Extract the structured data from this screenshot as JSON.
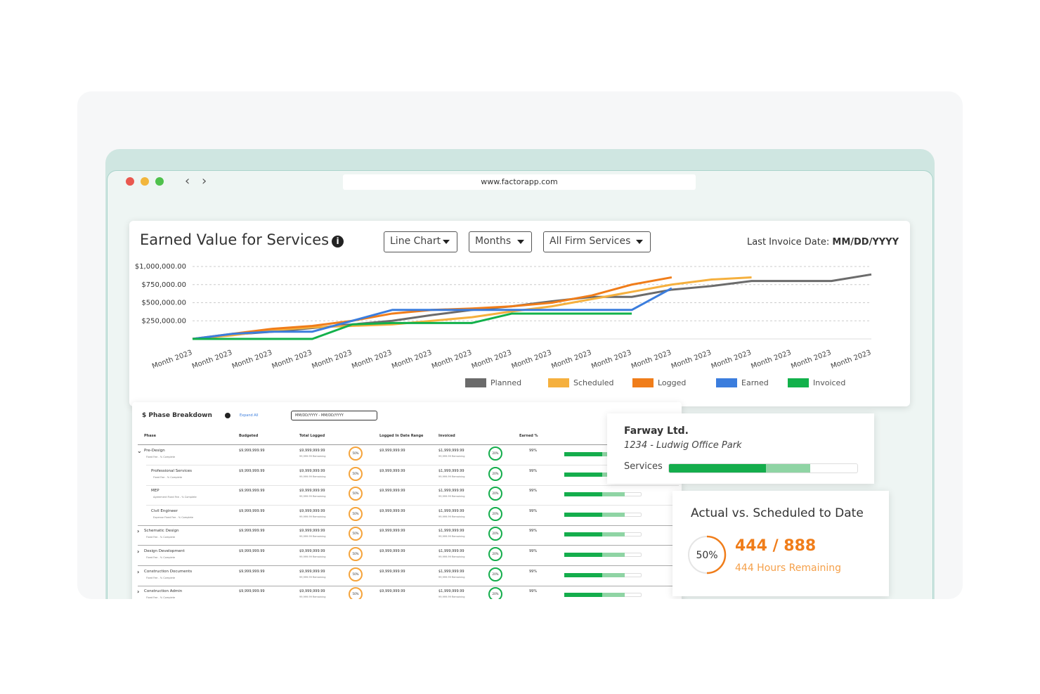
{
  "browser": {
    "url": "www.factorapp.com"
  },
  "earned_value": {
    "title": "Earned Value for Services",
    "dropdowns": [
      "Line Chart",
      "Months",
      "All Firm Services"
    ],
    "last_invoice_label": "Last Invoice Date:",
    "last_invoice_value": "MM/DD/YYYY"
  },
  "chart_data": {
    "type": "line",
    "categories": [
      "Month 2023",
      "Month 2023",
      "Month 2023",
      "Month 2023",
      "Month 2023",
      "Month 2023",
      "Month 2023",
      "Month 2023",
      "Month 2023",
      "Month 2023",
      "Month 2023",
      "Month 2023",
      "Month 2023",
      "Month 2023",
      "Month 2023",
      "Month 2023",
      "Month 2023",
      "Month 2023"
    ],
    "ylim": [
      0,
      1000000
    ],
    "yticks": [
      {
        "value": 250000,
        "label": "$250,000.00"
      },
      {
        "value": 500000,
        "label": "$500,000.00"
      },
      {
        "value": 750000,
        "label": "$750,000.00"
      },
      {
        "value": 1000000,
        "label": "$1,000,000.00"
      }
    ],
    "grid": true,
    "series": [
      {
        "name": "Planned",
        "color": "#6b6b6b",
        "values": [
          0,
          60000,
          100000,
          150000,
          200000,
          250000,
          330000,
          400000,
          450000,
          520000,
          580000,
          580000,
          680000,
          730000,
          800000,
          800000,
          800000,
          890000
        ]
      },
      {
        "name": "Scheduled",
        "color": "#f5b03e",
        "values": [
          0,
          50000,
          120000,
          160000,
          180000,
          200000,
          250000,
          300000,
          380000,
          450000,
          550000,
          650000,
          750000,
          820000,
          850000,
          null,
          null,
          null
        ]
      },
      {
        "name": "Logged",
        "color": "#f07d1a",
        "values": [
          0,
          70000,
          140000,
          180000,
          250000,
          350000,
          400000,
          420000,
          450000,
          500000,
          600000,
          750000,
          850000,
          null,
          null,
          null,
          null,
          null
        ]
      },
      {
        "name": "Earned",
        "color": "#3b7ddd",
        "values": [
          0,
          70000,
          100000,
          100000,
          250000,
          400000,
          400000,
          400000,
          400000,
          400000,
          400000,
          400000,
          700000,
          null,
          null,
          null,
          null,
          null
        ]
      },
      {
        "name": "Invoiced",
        "color": "#12b14b",
        "values": [
          0,
          0,
          0,
          0,
          200000,
          220000,
          220000,
          220000,
          350000,
          350000,
          350000,
          350000,
          null,
          null,
          null,
          null,
          null,
          null
        ]
      }
    ]
  },
  "phase_breakdown": {
    "title": "$ Phase Breakdown",
    "expand": "Expand All",
    "date_range": "MM/DD/YYYY - MM/DD/YYYY",
    "columns": [
      "Phase",
      "Budgeted",
      "Total Logged",
      "Logged In Date Range",
      "Invoiced",
      "Earned %"
    ],
    "rows": [
      {
        "phase": "Pre-Design",
        "note": "Fixed Fee - % Complete",
        "budgeted": "$9,999,999.99",
        "logged": "$9,999,999.99",
        "logged_remaining": "99,999.99 Remaining",
        "logged_pct": "50%",
        "range": "$9,999,999.99",
        "invoiced": "$1,999,999.99",
        "invoiced_remaining": "99,999.99 Remaining",
        "invoiced_pct": "20%",
        "earned": "99%",
        "children": [
          {
            "phase": "Professional Services",
            "note": "Fixed Fee - % Complete",
            "budgeted": "$9,999,999.99",
            "logged": "$9,999,999.99",
            "logged_remaining": "99,999.99 Remaining",
            "logged_pct": "50%",
            "range": "$9,999,999.99",
            "invoiced": "$1,999,999.99",
            "invoiced_remaining": "99,999.99 Remaining",
            "invoiced_pct": "20%",
            "earned": "99%"
          },
          {
            "phase": "MEP",
            "note": "Agreement Fixed Fee - % Complete",
            "budgeted": "$9,999,999.99",
            "logged": "$9,999,999.99",
            "logged_remaining": "99,999.99 Remaining",
            "logged_pct": "50%",
            "range": "$9,999,999.99",
            "invoiced": "$1,999,999.99",
            "invoiced_remaining": "99,999.99 Remaining",
            "invoiced_pct": "20%",
            "earned": "99%"
          },
          {
            "phase": "Civil Engineer",
            "note": "Expense Fixed Fee - % Complete",
            "budgeted": "$9,999,999.99",
            "logged": "$9,999,999.99",
            "logged_remaining": "99,999.99 Remaining",
            "logged_pct": "50%",
            "range": "$9,999,999.99",
            "invoiced": "$1,999,999.99",
            "invoiced_remaining": "99,999.99 Remaining",
            "invoiced_pct": "20%",
            "earned": "99%"
          }
        ]
      },
      {
        "phase": "Schematic Design",
        "note": "Fixed Fee - % Complete",
        "budgeted": "$9,999,999.99",
        "logged": "$9,999,999.99",
        "logged_remaining": "99,999.99 Remaining",
        "logged_pct": "50%",
        "range": "$9,999,999.99",
        "invoiced": "$1,999,999.99",
        "invoiced_remaining": "99,999.99 Remaining",
        "invoiced_pct": "20%",
        "earned": "99%"
      },
      {
        "phase": "Design Development",
        "note": "Fixed Fee - % Complete",
        "budgeted": "$9,999,999.99",
        "logged": "$9,999,999.99",
        "logged_remaining": "99,999.99 Remaining",
        "logged_pct": "50%",
        "range": "$9,999,999.99",
        "invoiced": "$1,999,999.99",
        "invoiced_remaining": "99,999.99 Remaining",
        "invoiced_pct": "20%",
        "earned": "99%"
      },
      {
        "phase": "Construction Documents",
        "note": "Fixed Fee - % Complete",
        "budgeted": "$9,999,999.99",
        "logged": "$9,999,999.99",
        "logged_remaining": "99,999.99 Remaining",
        "logged_pct": "50%",
        "range": "$9,999,999.99",
        "invoiced": "$1,999,999.99",
        "invoiced_remaining": "99,999.99 Remaining",
        "invoiced_pct": "20%",
        "earned": "99%"
      },
      {
        "phase": "Construction Admin",
        "note": "Fixed Fee - % Complete",
        "budgeted": "$9,999,999.99",
        "logged": "$9,999,999.99",
        "logged_remaining": "99,999.99 Remaining",
        "logged_pct": "50%",
        "range": "$9,999,999.99",
        "invoiced": "$1,999,999.99",
        "invoiced_remaining": "99,999.99 Remaining",
        "invoiced_pct": "20%",
        "earned": "99%"
      }
    ]
  },
  "client_card": {
    "name": "Farway Ltd.",
    "project": "1234 - Ludwig Office Park",
    "services_label": "Services"
  },
  "actual_card": {
    "title": "Actual vs. Scheduled to Date",
    "percent": "50%",
    "ratio": "444 / 888",
    "remaining": "444 Hours Remaining"
  }
}
